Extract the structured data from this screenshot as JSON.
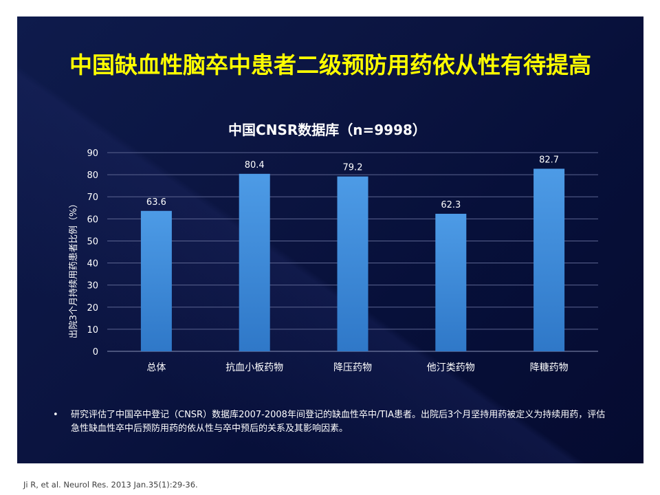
{
  "title": "中国缺血性脑卒中患者二级预防用药依从性有待提高",
  "chart_data": {
    "type": "bar",
    "title": "中国CNSR数据库（n=9998）",
    "ylabel": "出院3个月持续用药患者比例（%）",
    "xlabel": "",
    "categories": [
      "总体",
      "抗血小板药物",
      "降压药物",
      "他汀类药物",
      "降糖药物"
    ],
    "values": [
      63.6,
      80.4,
      79.2,
      62.3,
      82.7
    ],
    "ylim": [
      0,
      90
    ],
    "yticks": [
      0,
      10,
      20,
      30,
      40,
      50,
      60,
      70,
      80,
      90
    ],
    "grid": true,
    "bar_color": "#3e8ede"
  },
  "bullet": {
    "symbol": "•",
    "text": "研究评估了中国卒中登记（CNSR）数据库2007-2008年间登记的缺血性卒中/TIA患者。出院后3个月坚持用药被定义为持续用药，评估急性缺血性卒中后预防用药的依从性与卒中预后的关系及其影响因素。"
  },
  "citation": "Ji R, et al. Neurol Res. 2013 Jan.35(1):29-36."
}
